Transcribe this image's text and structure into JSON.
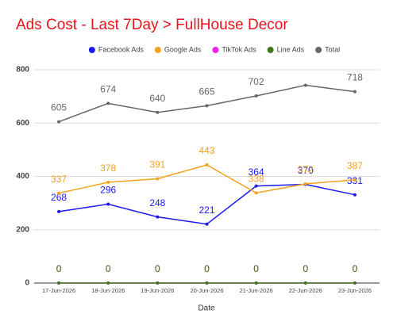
{
  "chart_data": {
    "type": "line",
    "title": "Ads Cost - Last 7Day > FullHouse Decor",
    "x_label": "Date",
    "categories": [
      "17-Jun-2026",
      "18-Jun-2026",
      "19-Jun-2026",
      "20-Jun-2026",
      "21-Jun-2026",
      "22-Jun-2026",
      "23-Jun-2026"
    ],
    "series": [
      {
        "name": "Facebook Ads",
        "color": "#1a1aee",
        "values": [
          268,
          296,
          248,
          221,
          364,
          370,
          331
        ]
      },
      {
        "name": "Google Ads",
        "color": "#f4a21e",
        "values": [
          337,
          378,
          391,
          443,
          338,
          372,
          387
        ]
      },
      {
        "name": "TikTok Ads",
        "color": "#ee22ee",
        "values": [
          0,
          0,
          0,
          0,
          0,
          0,
          0
        ]
      },
      {
        "name": "Line Ads",
        "color": "#3a7a1a",
        "values": [
          0,
          0,
          0,
          0,
          0,
          0,
          0
        ]
      },
      {
        "name": "Total",
        "color": "#666666",
        "values": [
          605,
          674,
          640,
          665,
          702,
          742,
          718
        ],
        "value_labels": [
          "605",
          "674",
          "640",
          "665",
          "702",
          null,
          "718"
        ]
      }
    ],
    "ylim": [
      0,
      800
    ],
    "yticks": [
      0,
      200,
      400,
      600,
      800
    ],
    "grid": true,
    "legend": "top"
  }
}
